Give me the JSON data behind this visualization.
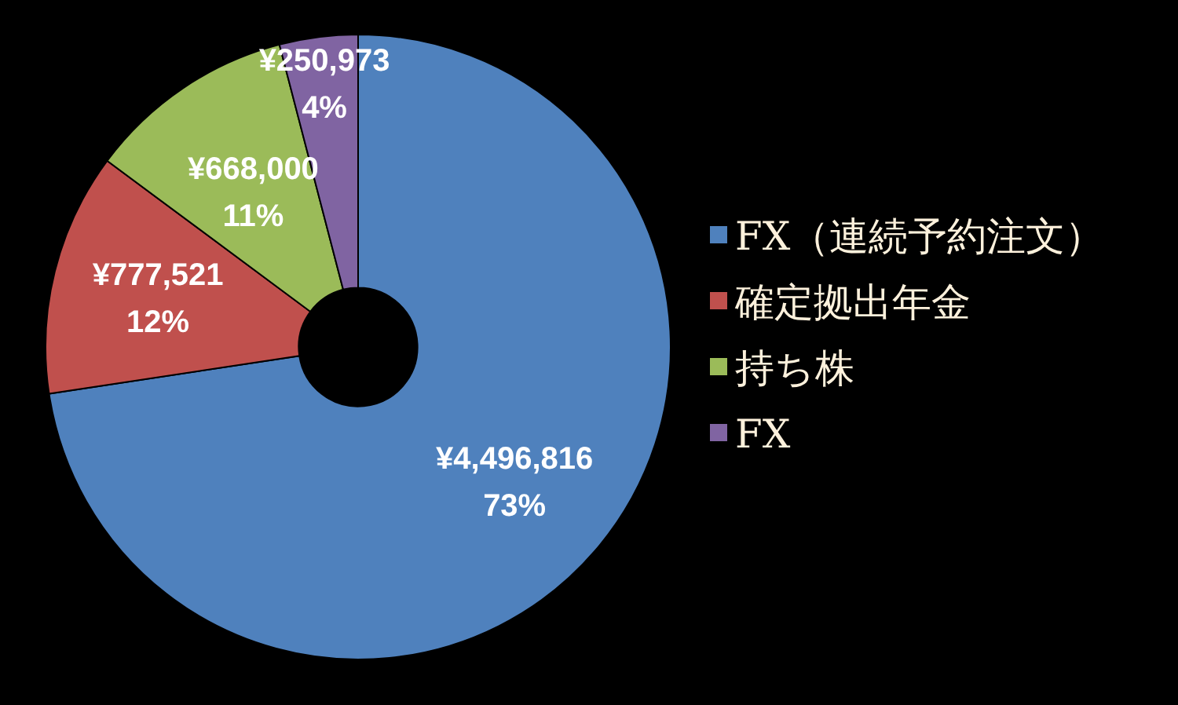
{
  "chart_data": {
    "type": "donut",
    "categories": [
      "FX（連続予約注文）",
      "確定拠出年金",
      "持ち株",
      "FX"
    ],
    "values": [
      4496816,
      777521,
      668000,
      250973
    ],
    "colors": [
      "#4f81bd",
      "#c0504d",
      "#9bbb59",
      "#8064a2"
    ],
    "value_labels": [
      "¥4,496,816\n73%",
      "¥777,521\n12%",
      "¥668,000\n11%",
      "¥250,973\n4%"
    ],
    "legend": "right"
  }
}
